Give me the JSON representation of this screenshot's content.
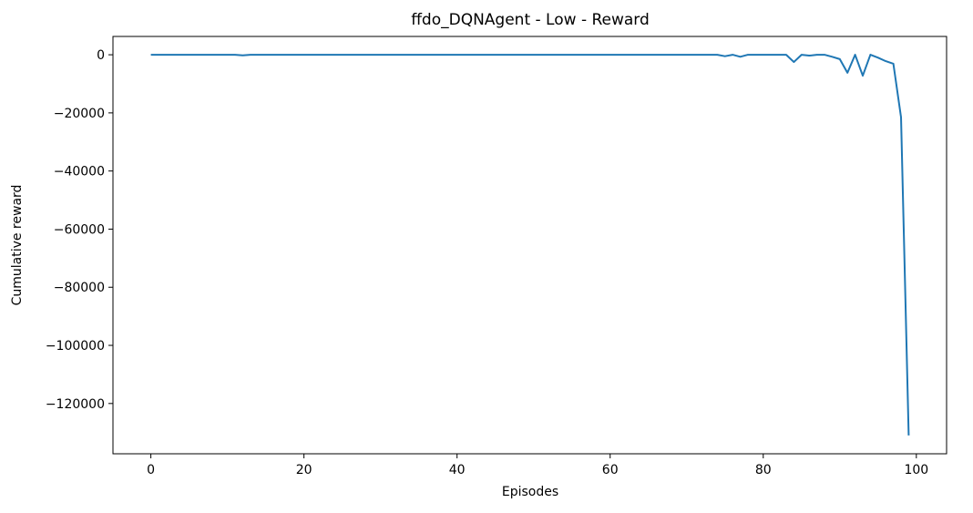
{
  "chart_data": {
    "type": "line",
    "title": "ffdo_DQNAgent - Low - Reward",
    "xlabel": "Episodes",
    "ylabel": "Cumulative reward",
    "xlim": [
      -4.95,
      103.95
    ],
    "ylim": [
      -137300,
      6300
    ],
    "grid": false,
    "legend": "none",
    "line_color": "#1f77b4",
    "x_ticks": [
      0,
      20,
      40,
      60,
      80,
      100
    ],
    "x_tick_labels": [
      "0",
      "20",
      "40",
      "60",
      "80",
      "100"
    ],
    "y_ticks": [
      0,
      -20000,
      -40000,
      -60000,
      -80000,
      -100000,
      -120000
    ],
    "y_tick_labels": [
      "0",
      "−20000",
      "−40000",
      "−60000",
      "−80000",
      "−100000",
      "−120000"
    ],
    "series": [
      {
        "x": [
          0,
          1,
          2,
          3,
          4,
          5,
          6,
          7,
          8,
          9,
          10,
          11,
          12,
          13,
          14,
          15,
          16,
          17,
          18,
          19,
          20,
          21,
          22,
          23,
          24,
          25,
          26,
          27,
          28,
          29,
          30,
          31,
          32,
          33,
          34,
          35,
          36,
          37,
          38,
          39,
          40,
          41,
          42,
          43,
          44,
          45,
          46,
          47,
          48,
          49,
          50,
          51,
          52,
          53,
          54,
          55,
          56,
          57,
          58,
          59,
          60,
          61,
          62,
          63,
          64,
          65,
          66,
          67,
          68,
          69,
          70,
          71,
          72,
          73,
          74,
          75,
          76,
          77,
          78,
          79,
          80,
          81,
          82,
          83,
          84,
          85,
          86,
          87,
          88,
          89,
          90,
          91,
          92,
          93,
          94,
          95,
          96,
          97,
          98,
          99
        ],
        "y": [
          0,
          0,
          0,
          0,
          0,
          0,
          0,
          0,
          0,
          0,
          0,
          0,
          -200,
          0,
          0,
          0,
          0,
          0,
          0,
          0,
          0,
          0,
          0,
          0,
          0,
          0,
          0,
          0,
          0,
          0,
          0,
          0,
          0,
          0,
          0,
          0,
          0,
          0,
          0,
          0,
          0,
          0,
          0,
          0,
          0,
          0,
          0,
          0,
          0,
          0,
          0,
          0,
          0,
          0,
          0,
          0,
          0,
          0,
          0,
          0,
          0,
          0,
          0,
          0,
          0,
          0,
          0,
          0,
          0,
          0,
          0,
          0,
          0,
          0,
          0,
          -500,
          0,
          -700,
          0,
          0,
          0,
          0,
          0,
          0,
          -2500,
          0,
          -300,
          0,
          0,
          -700,
          -1500,
          -6200,
          0,
          -7200,
          0,
          -1000,
          -2200,
          -3100,
          -21500,
          -131000
        ]
      }
    ]
  }
}
